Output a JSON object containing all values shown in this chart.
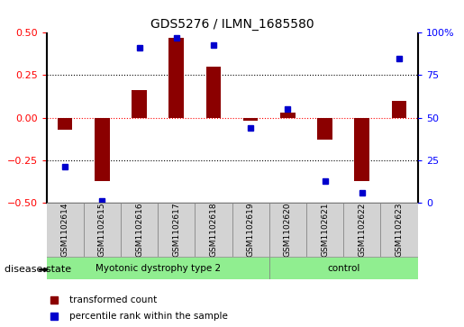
{
  "title": "GDS5276 / ILMN_1685580",
  "samples": [
    "GSM1102614",
    "GSM1102615",
    "GSM1102616",
    "GSM1102617",
    "GSM1102618",
    "GSM1102619",
    "GSM1102620",
    "GSM1102621",
    "GSM1102622",
    "GSM1102623"
  ],
  "red_bars": [
    -0.07,
    -0.37,
    0.16,
    0.47,
    0.3,
    -0.02,
    0.03,
    -0.13,
    -0.37,
    0.1
  ],
  "blue_dots": [
    -0.29,
    -0.49,
    0.41,
    0.47,
    0.43,
    -0.06,
    0.05,
    -0.37,
    -0.44,
    0.35
  ],
  "disease_groups": [
    {
      "label": "Myotonic dystrophy type 2",
      "start": 0,
      "end": 6,
      "color": "#90EE90"
    },
    {
      "label": "control",
      "start": 6,
      "end": 10,
      "color": "#90EE90"
    }
  ],
  "ylim_left": [
    -0.5,
    0.5
  ],
  "ylim_right": [
    0,
    100
  ],
  "left_ticks": [
    -0.5,
    -0.25,
    0,
    0.25,
    0.5
  ],
  "right_ticks": [
    0,
    25,
    50,
    75,
    100
  ],
  "right_tick_labels": [
    "0",
    "25",
    "50",
    "75",
    "100%"
  ],
  "bar_color": "#8B0000",
  "dot_color": "#0000CD",
  "legend_labels": [
    "transformed count",
    "percentile rank within the sample"
  ],
  "disease_state_label": "disease state",
  "background_color": "#ffffff"
}
